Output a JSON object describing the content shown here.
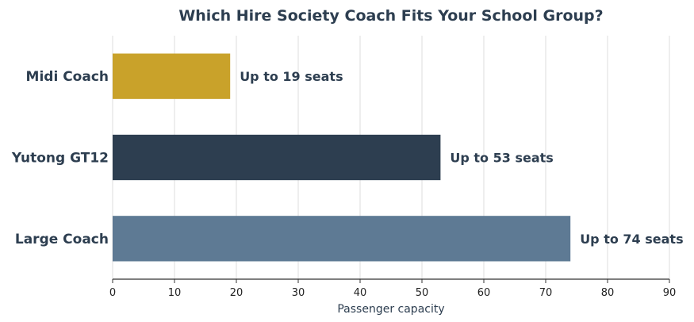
{
  "chart_data": {
    "type": "bar",
    "orientation": "horizontal",
    "title": "Which Hire Society Coach Fits Your School Group?",
    "xlabel": "Passenger capacity",
    "ylabel": "",
    "categories": [
      "Midi Coach",
      "Yutong GT12",
      "Large Coach"
    ],
    "values": [
      19,
      53,
      74
    ],
    "data_labels": [
      "Up to 19 seats",
      "Up to 53 seats",
      "Up to 74 seats"
    ],
    "colors": [
      "#c9a22a",
      "#2d3e50",
      "#5e7a94"
    ],
    "xlim": [
      0,
      90
    ],
    "xticks": [
      "0",
      "10",
      "20",
      "30",
      "40",
      "50",
      "60",
      "70",
      "80",
      "90"
    ],
    "grid": true,
    "legend": "none"
  }
}
